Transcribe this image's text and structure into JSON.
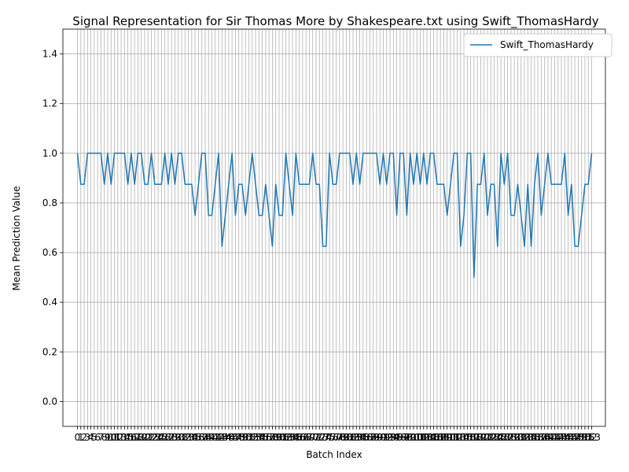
{
  "chart_data": {
    "type": "line",
    "title": "Signal Representation for Sir Thomas More by Shakespeare.txt using Swift_ThomasHardy",
    "xlabel": "Batch Index",
    "ylabel": "Mean Prediction Value",
    "ylim": [
      -0.1,
      1.5
    ],
    "yticks": [
      0.0,
      0.2,
      0.4,
      0.6,
      0.8,
      1.0,
      1.2,
      1.4
    ],
    "grid": true,
    "legend_position": "top-right",
    "series": [
      {
        "name": "Swift_ThomasHardy",
        "color": "#1f77b4",
        "values": [
          1.0,
          0.875,
          0.875,
          1.0,
          1.0,
          1.0,
          1.0,
          1.0,
          0.875,
          1.0,
          0.875,
          1.0,
          1.0,
          1.0,
          1.0,
          0.875,
          1.0,
          0.875,
          1.0,
          1.0,
          0.875,
          0.875,
          1.0,
          0.875,
          0.875,
          0.875,
          1.0,
          0.875,
          1.0,
          0.875,
          1.0,
          1.0,
          0.875,
          0.875,
          0.875,
          0.75,
          0.875,
          1.0,
          1.0,
          0.75,
          0.75,
          0.875,
          1.0,
          0.625,
          0.75,
          0.875,
          1.0,
          0.75,
          0.875,
          0.875,
          0.75,
          0.875,
          1.0,
          0.875,
          0.75,
          0.75,
          0.875,
          0.75,
          0.625,
          0.875,
          0.75,
          0.75,
          1.0,
          0.875,
          0.75,
          1.0,
          0.875,
          0.875,
          0.875,
          0.875,
          1.0,
          0.875,
          0.875,
          0.625,
          0.625,
          1.0,
          0.875,
          0.875,
          1.0,
          1.0,
          1.0,
          1.0,
          0.875,
          1.0,
          0.875,
          1.0,
          1.0,
          1.0,
          1.0,
          1.0,
          0.875,
          1.0,
          0.875,
          1.0,
          1.0,
          0.75,
          1.0,
          1.0,
          0.75,
          1.0,
          0.875,
          1.0,
          0.875,
          1.0,
          0.875,
          1.0,
          1.0,
          0.875,
          0.875,
          0.875,
          0.75,
          0.875,
          1.0,
          1.0,
          0.625,
          0.75,
          1.0,
          1.0,
          0.5,
          0.875,
          0.875,
          1.0,
          0.75,
          0.875,
          0.875,
          0.625,
          1.0,
          0.875,
          1.0,
          0.75,
          0.75,
          0.875,
          0.75,
          0.625,
          0.875,
          0.625,
          0.875,
          1.0,
          0.75,
          0.875,
          1.0,
          0.875,
          0.875,
          0.875,
          0.875,
          1.0,
          0.75,
          0.875,
          0.625,
          0.625,
          0.75,
          0.875,
          0.875,
          1.0
        ]
      }
    ],
    "x_tick_step": 1
  }
}
